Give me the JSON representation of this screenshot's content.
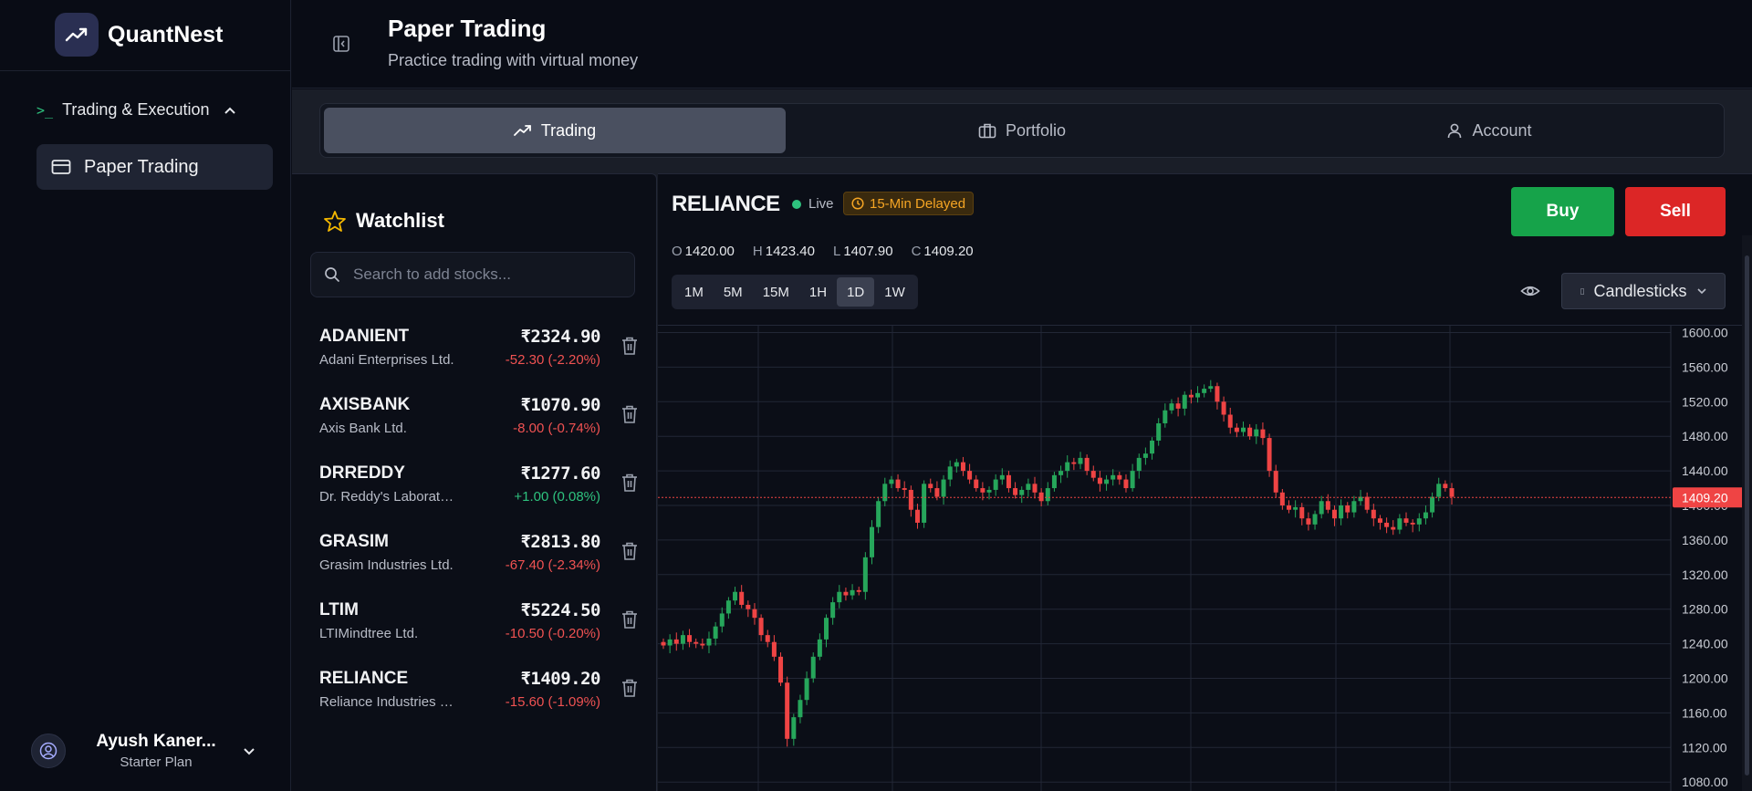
{
  "app": {
    "brand": "QuantNest"
  },
  "sidebar": {
    "section_label": "Trading & Execution",
    "items": [
      {
        "label": "Paper Trading",
        "icon": "card-icon",
        "active": true
      }
    ],
    "user": {
      "name": "Ayush Kaner...",
      "plan": "Starter Plan"
    }
  },
  "header": {
    "title": "Paper Trading",
    "subtitle": "Practice trading with virtual money"
  },
  "tabs": [
    {
      "label": "Trading",
      "icon": "trending-up-icon",
      "active": true
    },
    {
      "label": "Portfolio",
      "icon": "briefcase-icon",
      "active": false
    },
    {
      "label": "Account",
      "icon": "user-icon",
      "active": false
    }
  ],
  "watchlist": {
    "title": "Watchlist",
    "search_placeholder": "Search to add stocks...",
    "stocks": [
      {
        "symbol": "ADANIENT",
        "name": "Adani Enterprises Ltd.",
        "price": "₹2324.90",
        "change": "-52.30 (-2.20%)",
        "direction": "down"
      },
      {
        "symbol": "AXISBANK",
        "name": "Axis Bank Ltd.",
        "price": "₹1070.90",
        "change": "-8.00 (-0.74%)",
        "direction": "down"
      },
      {
        "symbol": "DRREDDY",
        "name": "Dr. Reddy's Laboratories Ltd.",
        "price": "₹1277.60",
        "change": "+1.00 (0.08%)",
        "direction": "up"
      },
      {
        "symbol": "GRASIM",
        "name": "Grasim Industries Ltd.",
        "price": "₹2813.80",
        "change": "-67.40 (-2.34%)",
        "direction": "down"
      },
      {
        "symbol": "LTIM",
        "name": "LTIMindtree Ltd.",
        "price": "₹5224.50",
        "change": "-10.50 (-0.20%)",
        "direction": "down"
      },
      {
        "symbol": "RELIANCE",
        "name": "Reliance Industries Ltd.",
        "price": "₹1409.20",
        "change": "-15.60 (-1.09%)",
        "direction": "down"
      }
    ]
  },
  "chart_panel": {
    "symbol": "RELIANCE",
    "live_label": "Live",
    "delayed_label": "15-Min Delayed",
    "ohlc": {
      "o_label": "O",
      "o": "1420.00",
      "h_label": "H",
      "h": "1423.40",
      "l_label": "L",
      "l": "1407.90",
      "c_label": "C",
      "c": "1409.20"
    },
    "timeframes": [
      "1M",
      "5M",
      "15M",
      "1H",
      "1D",
      "1W"
    ],
    "active_timeframe": "1D",
    "buy_label": "Buy",
    "sell_label": "Sell",
    "chart_type": "Candlesticks",
    "colors": {
      "up": "#26a65b",
      "down": "#ef4444",
      "last_price_bg": "#ef4444"
    }
  },
  "chart_data": {
    "type": "candlestick",
    "y_ticks": [
      "1600.00",
      "1560.00",
      "1520.00",
      "1480.00",
      "1440.00",
      "1400.00",
      "1360.00",
      "1320.00",
      "1280.00",
      "1240.00",
      "1200.00",
      "1160.00",
      "1120.00",
      "1080.00"
    ],
    "ylim": [
      1080,
      1600
    ],
    "last_price": 1409.2,
    "last_price_label": "1409.20",
    "closes": [
      1238,
      1245,
      1240,
      1250,
      1242,
      1240,
      1238,
      1246,
      1260,
      1275,
      1290,
      1300,
      1285,
      1280,
      1270,
      1250,
      1242,
      1225,
      1195,
      1130,
      1155,
      1175,
      1200,
      1225,
      1245,
      1270,
      1288,
      1300,
      1296,
      1302,
      1300,
      1340,
      1375,
      1405,
      1425,
      1430,
      1420,
      1418,
      1395,
      1380,
      1425,
      1420,
      1410,
      1430,
      1445,
      1450,
      1440,
      1430,
      1420,
      1415,
      1418,
      1430,
      1435,
      1420,
      1412,
      1418,
      1425,
      1415,
      1405,
      1420,
      1435,
      1440,
      1450,
      1448,
      1455,
      1440,
      1432,
      1425,
      1430,
      1435,
      1430,
      1420,
      1440,
      1455,
      1460,
      1475,
      1495,
      1510,
      1518,
      1512,
      1528,
      1525,
      1530,
      1535,
      1538,
      1520,
      1505,
      1490,
      1485,
      1490,
      1480,
      1488,
      1478,
      1440,
      1415,
      1400,
      1395,
      1398,
      1385,
      1378,
      1390,
      1405,
      1395,
      1385,
      1400,
      1392,
      1405,
      1410,
      1395,
      1385,
      1380,
      1375,
      1372,
      1385,
      1380,
      1378,
      1385,
      1392,
      1410,
      1425,
      1420,
      1410
    ],
    "x_gridline_count": 7
  }
}
